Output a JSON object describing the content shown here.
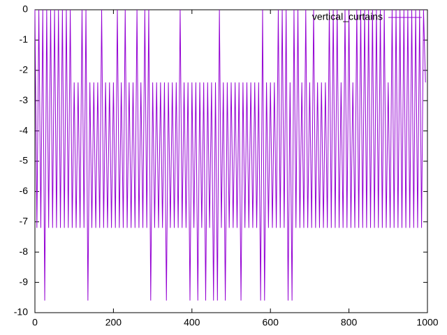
{
  "chart_data": {
    "type": "line",
    "x": [
      0,
      5,
      10,
      15,
      20,
      25,
      30,
      35,
      40,
      45,
      50,
      55,
      60,
      65,
      70,
      75,
      80,
      85,
      90,
      95,
      100,
      105,
      110,
      115,
      120,
      125,
      130,
      135,
      140,
      145,
      150,
      155,
      160,
      165,
      170,
      175,
      180,
      185,
      190,
      195,
      200,
      205,
      210,
      215,
      220,
      225,
      230,
      235,
      240,
      245,
      250,
      255,
      260,
      265,
      270,
      275,
      280,
      285,
      290,
      295,
      300,
      305,
      310,
      315,
      320,
      325,
      330,
      335,
      340,
      345,
      350,
      355,
      360,
      365,
      370,
      375,
      380,
      385,
      390,
      395,
      400,
      405,
      410,
      415,
      420,
      425,
      430,
      435,
      440,
      445,
      450,
      455,
      460,
      465,
      470,
      475,
      480,
      485,
      490,
      495,
      500,
      505,
      510,
      515,
      520,
      525,
      530,
      535,
      540,
      545,
      550,
      555,
      560,
      565,
      570,
      575,
      580,
      585,
      590,
      595,
      600,
      605,
      610,
      615,
      620,
      625,
      630,
      635,
      640,
      645,
      650,
      655,
      660,
      665,
      670,
      675,
      680,
      685,
      690,
      695,
      700,
      705,
      710,
      715,
      720,
      725,
      730,
      735,
      740,
      745,
      750,
      755,
      760,
      765,
      770,
      775,
      780,
      785,
      790,
      795,
      800,
      805,
      810,
      815,
      820,
      825,
      830,
      835,
      840,
      845,
      850,
      855,
      860,
      865,
      870,
      875,
      880,
      885,
      890,
      895,
      900,
      905,
      910,
      915,
      920,
      925,
      930,
      935,
      940,
      945,
      950,
      955,
      960,
      965,
      970,
      975,
      980,
      985,
      990,
      995
    ],
    "series": [
      {
        "name": "vertical_curtains",
        "color": "#9400d3",
        "values": [
          0,
          -7.2,
          0,
          -7.2,
          0,
          -9.6,
          0,
          -7.2,
          0,
          -7.2,
          0,
          -7.2,
          0,
          -7.2,
          0,
          -7.2,
          0,
          -7.2,
          0,
          -7.2,
          -2.4,
          -7.2,
          -2.4,
          -7.2,
          0,
          -7.2,
          0,
          -9.6,
          -2.4,
          -7.2,
          -2.4,
          -7.2,
          -2.4,
          -7.2,
          0,
          -7.2,
          -2.4,
          -7.2,
          -2.4,
          -7.2,
          -2.4,
          -7.2,
          0,
          -7.2,
          -2.4,
          -7.2,
          0,
          -7.2,
          -2.4,
          -7.2,
          -2.4,
          -7.2,
          0,
          -7.2,
          -2.4,
          -7.2,
          0,
          -7.2,
          0,
          -9.6,
          -2.4,
          -7.2,
          -2.4,
          -7.2,
          -2.4,
          -7.2,
          -2.4,
          -9.6,
          -2.4,
          -7.2,
          -2.4,
          -7.2,
          -2.4,
          -7.2,
          0,
          -7.2,
          -2.4,
          -7.2,
          -2.4,
          -9.6,
          -2.4,
          -7.2,
          -2.4,
          -9.6,
          -2.4,
          -7.2,
          -2.4,
          -9.6,
          -2.4,
          -7.2,
          -2.4,
          -9.6,
          -2.4,
          -9.6,
          0,
          -7.2,
          -2.4,
          -9.6,
          -2.4,
          -7.2,
          -2.4,
          -7.2,
          -2.4,
          -7.2,
          -2.4,
          -9.6,
          -2.4,
          -7.2,
          -2.4,
          -7.2,
          -2.4,
          -7.2,
          -2.4,
          -7.2,
          -2.4,
          -9.6,
          0,
          -9.6,
          -2.4,
          -7.2,
          -2.4,
          -7.2,
          -2.4,
          -7.2,
          0,
          -7.2,
          0,
          -7.2,
          0,
          -9.6,
          -2.4,
          -9.6,
          0,
          -7.2,
          0,
          -7.2,
          -2.4,
          -7.2,
          0,
          -7.2,
          -2.4,
          -7.2,
          0,
          -7.2,
          -2.4,
          -7.2,
          -2.4,
          -7.2,
          -2.4,
          -7.2,
          0,
          -7.2,
          0,
          -7.2,
          0,
          -7.2,
          -2.4,
          -7.2,
          0,
          -7.2,
          0,
          -7.2,
          -2.4,
          -7.2,
          0,
          -7.2,
          0,
          -7.2,
          0,
          -7.2,
          0,
          -7.2,
          0,
          -7.2,
          0,
          -7.2,
          0,
          -7.2,
          0,
          -7.2,
          -2.4,
          -7.2,
          0,
          -7.2,
          0,
          -7.2,
          0,
          -7.2,
          0,
          -7.2,
          0,
          -7.2,
          0,
          -7.2,
          0,
          -7.2,
          0,
          -7.2,
          0,
          -2.4
        ]
      }
    ],
    "xlim": [
      0,
      1000
    ],
    "xticks": [
      0,
      200,
      400,
      600,
      800,
      1000
    ],
    "ylim": [
      -10,
      0
    ],
    "yticks": [
      0,
      -1,
      -2,
      -3,
      -4,
      -5,
      -6,
      -7,
      -8,
      -9,
      -10
    ],
    "grid": false,
    "legend": "top-right"
  }
}
